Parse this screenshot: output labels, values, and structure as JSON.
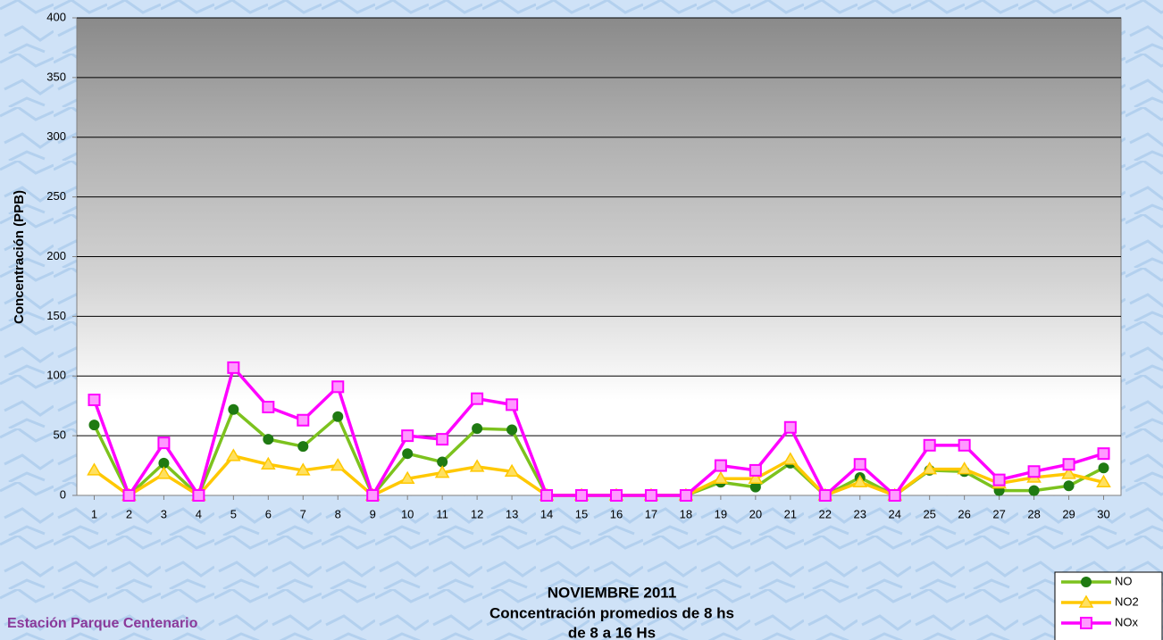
{
  "chart_data": {
    "type": "line",
    "title": "NOVIEMBRE 2011",
    "subtitle": [
      "Concentración promedios de 8 hs",
      "de 8 a 16 Hs"
    ],
    "station": "Estación Parque Centenario",
    "y_label": "Concentración (PPB)",
    "x": [
      1,
      2,
      3,
      4,
      5,
      6,
      7,
      8,
      9,
      10,
      11,
      12,
      13,
      14,
      15,
      16,
      17,
      18,
      19,
      20,
      21,
      22,
      23,
      24,
      25,
      26,
      27,
      28,
      29,
      30
    ],
    "series": [
      {
        "name": "NO",
        "color": "#7cc21e",
        "marker": "circle",
        "marker_color": "#1f7a12",
        "values": [
          59,
          0,
          27,
          0,
          72,
          47,
          41,
          66,
          0,
          35,
          28,
          56,
          55,
          0,
          0,
          0,
          0,
          0,
          11,
          7,
          27,
          0,
          15,
          0,
          21,
          20,
          4,
          4,
          8,
          23
        ]
      },
      {
        "name": "NO2",
        "color": "#ffc800",
        "marker": "triangle",
        "marker_color": "#ffe060",
        "values": [
          21,
          0,
          18,
          0,
          33,
          26,
          21,
          25,
          0,
          14,
          19,
          24,
          20,
          0,
          0,
          0,
          0,
          0,
          14,
          14,
          30,
          0,
          11,
          0,
          22,
          22,
          10,
          15,
          18,
          11
        ]
      },
      {
        "name": "NOx",
        "color": "#ff00ff",
        "marker": "square",
        "marker_color": "#ff99ff",
        "values": [
          80,
          0,
          44,
          0,
          107,
          74,
          63,
          91,
          0,
          50,
          47,
          81,
          76,
          0,
          0,
          0,
          0,
          0,
          25,
          21,
          57,
          0,
          26,
          0,
          42,
          42,
          13,
          20,
          26,
          35
        ]
      }
    ],
    "ylim": [
      0,
      400
    ],
    "yticks": [
      0,
      50,
      100,
      150,
      200,
      250,
      300,
      350,
      400
    ],
    "grid": true
  }
}
